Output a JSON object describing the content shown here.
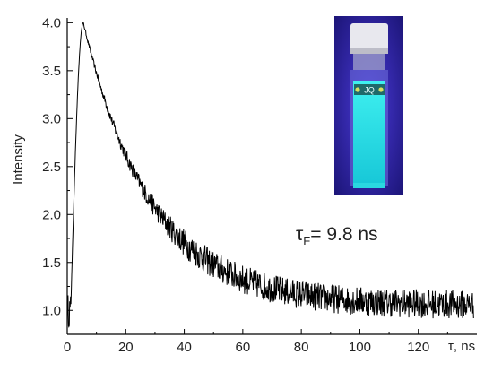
{
  "chart_data": {
    "type": "line",
    "title": "",
    "xlabel": "τ, ns",
    "ylabel": "Intensity",
    "xlim": [
      0,
      140
    ],
    "ylim": [
      0.75,
      4.05
    ],
    "x_ticks": [
      0,
      20,
      40,
      60,
      80,
      100,
      120
    ],
    "y_ticks": [
      1.0,
      1.5,
      2.0,
      2.5,
      3.0,
      3.5,
      4.0
    ],
    "y_tick_labels": [
      "1.0",
      "1.5",
      "2.0",
      "2.5",
      "3.0",
      "3.5",
      "4.0"
    ],
    "grid": false,
    "series": [
      {
        "color": "#000000",
        "rise_start_ns": 1.2,
        "peak_time_ns": 5.5,
        "peak_value": 4.0,
        "baseline": 1.05,
        "decay_time_ns": 23,
        "noise_amplitude": 0.15,
        "x_end_ns": 139
      }
    ],
    "annotation": {
      "symbol": "τ",
      "subscript": "F",
      "text": "= 9.8 ns"
    },
    "inset_photo": {
      "vial_label": "JQ",
      "glow_color": "#22e6ee",
      "background": "#2a1fa0"
    }
  }
}
